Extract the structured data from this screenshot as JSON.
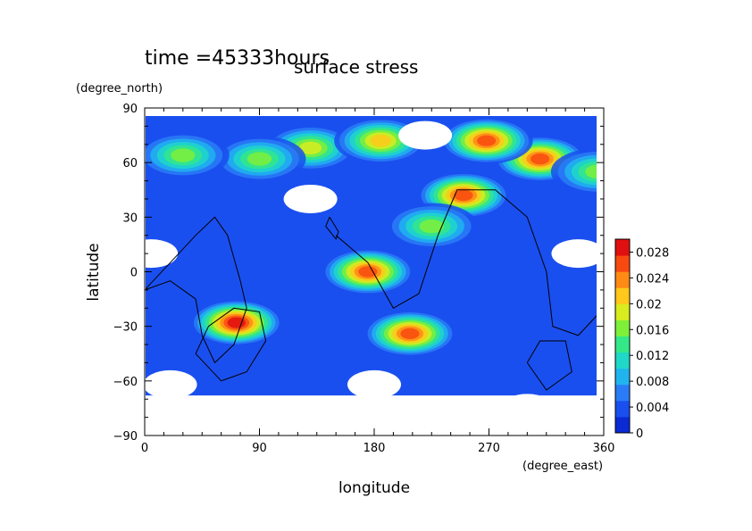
{
  "chart_data": {
    "type": "heatmap",
    "time_label": "time =45333hours",
    "title": "surface stress",
    "xlabel": "longitude",
    "ylabel": "latitude",
    "x_unit": "(degree_east)",
    "y_unit": "(degree_north)",
    "xlim": [
      0,
      360
    ],
    "ylim": [
      -90,
      90
    ],
    "x_ticks": [
      0,
      90,
      180,
      270,
      360
    ],
    "y_ticks": [
      -90,
      -60,
      -30,
      0,
      30,
      60,
      90
    ],
    "colorbar": {
      "min": 0,
      "max": 0.03,
      "tick_values": [
        0,
        0.004,
        0.008,
        0.012,
        0.016,
        0.02,
        0.024,
        0.028
      ],
      "tick_labels": [
        "0",
        "0.004",
        "0.008",
        "0.012",
        "0.016",
        "0.02",
        "0.024",
        "0.028"
      ],
      "colors": [
        "#0a2ad6",
        "#1a4fef",
        "#2a7cf6",
        "#20b4ef",
        "#20d8c8",
        "#34e888",
        "#7ef03a",
        "#d8ec1e",
        "#ffc81a",
        "#ff8a14",
        "#f84a10",
        "#e01010"
      ]
    },
    "hotspots": [
      {
        "lon": 72,
        "lat": -28,
        "value": 0.028
      },
      {
        "lon": 175,
        "lat": 0,
        "value": 0.026
      },
      {
        "lon": 208,
        "lat": -34,
        "value": 0.024
      },
      {
        "lon": 250,
        "lat": 42,
        "value": 0.026
      },
      {
        "lon": 310,
        "lat": 62,
        "value": 0.026
      },
      {
        "lon": 268,
        "lat": 72,
        "value": 0.024
      },
      {
        "lon": 130,
        "lat": 68,
        "value": 0.018
      },
      {
        "lon": 185,
        "lat": 72,
        "value": 0.02
      },
      {
        "lon": 90,
        "lat": 62,
        "value": 0.016
      },
      {
        "lon": 30,
        "lat": 64,
        "value": 0.014
      },
      {
        "lon": 225,
        "lat": 25,
        "value": 0.016
      },
      {
        "lon": 355,
        "lat": 55,
        "value": 0.014
      }
    ],
    "calm_regions": [
      {
        "lon": 220,
        "lat": 75
      },
      {
        "lon": 130,
        "lat": 40
      },
      {
        "lon": 5,
        "lat": 10
      },
      {
        "lon": 340,
        "lat": 10
      },
      {
        "lon": 180,
        "lat": -62
      },
      {
        "lon": 20,
        "lat": -62
      },
      {
        "lon": 300,
        "lat": -75
      }
    ]
  }
}
